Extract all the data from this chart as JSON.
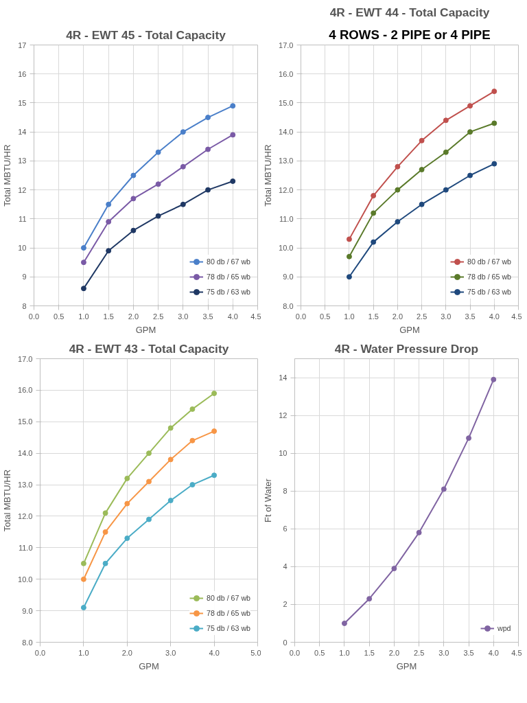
{
  "chart_data": [
    {
      "type": "line",
      "title": "4R - EWT 45 - Total Capacity",
      "xlabel": "GPM",
      "ylabel": "Total MBTU/HR",
      "marker": "circle",
      "grid": true,
      "legend": "bottom right",
      "x": [
        1.0,
        1.5,
        2.0,
        2.5,
        3.0,
        3.5,
        4.0
      ],
      "xlim": [
        0,
        4.5
      ],
      "xticks": [
        {
          "value": 0,
          "label": "0.0"
        },
        0.5,
        {
          "value": 1,
          "label": "1.0"
        },
        1.5,
        {
          "value": 2,
          "label": "2.0"
        },
        2.5,
        {
          "value": 3,
          "label": "3.0"
        },
        3.5,
        {
          "value": 4,
          "label": "4.0"
        },
        4.5
      ],
      "ylim": [
        8,
        17
      ],
      "yticks": [
        8,
        9,
        10,
        11,
        12,
        13,
        14,
        15,
        16,
        17
      ],
      "series": [
        {
          "name": "80 db / 67 wb",
          "color": "#4a7fc9",
          "values": [
            10.0,
            11.5,
            12.5,
            13.3,
            14.0,
            14.5,
            14.9
          ]
        },
        {
          "name": "78 db / 65 wb",
          "color": "#7a5aa6",
          "values": [
            9.5,
            10.9,
            11.7,
            12.2,
            12.8,
            13.4,
            13.9
          ]
        },
        {
          "name": "75 db / 63 wb",
          "color": "#1f3864",
          "values": [
            8.6,
            9.9,
            10.6,
            11.1,
            11.5,
            12.0,
            12.3
          ]
        }
      ]
    },
    {
      "type": "line",
      "title": "4R - EWT 44 - Total Capacity",
      "xlabel": "GPM",
      "ylabel": "Total MBTU/HR",
      "marker": "circle",
      "grid": true,
      "legend": "bottom right",
      "annotations": [
        "4 ROWS - 2 PIPE or 4 PIPE"
      ],
      "x": [
        1.0,
        1.5,
        2.0,
        2.5,
        3.0,
        3.5,
        4.0
      ],
      "xlim": [
        0,
        4.5
      ],
      "xticks": [
        {
          "value": 0,
          "label": "0.0"
        },
        0.5,
        {
          "value": 1,
          "label": "1.0"
        },
        1.5,
        {
          "value": 2,
          "label": "2.0"
        },
        2.5,
        {
          "value": 3,
          "label": "3.0"
        },
        3.5,
        {
          "value": 4,
          "label": "4.0"
        },
        4.5
      ],
      "ylim": [
        8,
        17
      ],
      "yticks": [
        {
          "value": 8,
          "label": "8.0"
        },
        {
          "value": 9,
          "label": "9.0"
        },
        {
          "value": 10,
          "label": "10.0"
        },
        {
          "value": 11,
          "label": "11.0"
        },
        {
          "value": 12,
          "label": "12.0"
        },
        {
          "value": 13,
          "label": "13.0"
        },
        {
          "value": 14,
          "label": "14.0"
        },
        {
          "value": 15,
          "label": "15.0"
        },
        {
          "value": 16,
          "label": "16.0"
        },
        {
          "value": 17,
          "label": "17.0"
        }
      ],
      "series": [
        {
          "name": "80 db / 67 wb",
          "color": "#c0504d",
          "values": [
            10.3,
            11.8,
            12.8,
            13.7,
            14.4,
            14.9,
            15.4
          ]
        },
        {
          "name": "78 db / 65 wb",
          "color": "#5a7a2a",
          "values": [
            9.7,
            11.2,
            12.0,
            12.7,
            13.3,
            14.0,
            14.3
          ]
        },
        {
          "name": "75 db / 63 wb",
          "color": "#1f497d",
          "values": [
            9.0,
            10.2,
            10.9,
            11.5,
            12.0,
            12.5,
            12.9
          ]
        }
      ]
    },
    {
      "type": "line",
      "title": "4R - EWT 43 - Total Capacity",
      "xlabel": "GPM",
      "ylabel": "Total MBTU/HR",
      "marker": "circle",
      "grid": true,
      "legend": "bottom right",
      "x": [
        1.0,
        1.5,
        2.0,
        2.5,
        3.0,
        3.5,
        4.0
      ],
      "xlim": [
        0,
        5
      ],
      "xticks": [
        {
          "value": 0,
          "label": "0.0"
        },
        {
          "value": 1,
          "label": "1.0"
        },
        {
          "value": 2,
          "label": "2.0"
        },
        {
          "value": 3,
          "label": "3.0"
        },
        {
          "value": 4,
          "label": "4.0"
        },
        {
          "value": 5,
          "label": "5.0"
        }
      ],
      "ylim": [
        8,
        17
      ],
      "yticks": [
        {
          "value": 8,
          "label": "8.0"
        },
        {
          "value": 9,
          "label": "9.0"
        },
        {
          "value": 10,
          "label": "10.0"
        },
        {
          "value": 11,
          "label": "11.0"
        },
        {
          "value": 12,
          "label": "12.0"
        },
        {
          "value": 13,
          "label": "13.0"
        },
        {
          "value": 14,
          "label": "14.0"
        },
        {
          "value": 15,
          "label": "15.0"
        },
        {
          "value": 16,
          "label": "16.0"
        },
        {
          "value": 17,
          "label": "17.0"
        }
      ],
      "series": [
        {
          "name": "80 db / 67 wb",
          "color": "#9bbb59",
          "values": [
            10.5,
            12.1,
            13.2,
            14.0,
            14.8,
            15.4,
            15.9
          ]
        },
        {
          "name": "78 db / 65 wb",
          "color": "#f79646",
          "values": [
            10.0,
            11.5,
            12.4,
            13.1,
            13.8,
            14.4,
            14.7
          ]
        },
        {
          "name": "75 db / 63 wb",
          "color": "#4bacc6",
          "values": [
            9.1,
            10.5,
            11.3,
            11.9,
            12.5,
            13.0,
            13.3
          ]
        }
      ]
    },
    {
      "type": "line",
      "title": "4R - Water Pressure Drop",
      "xlabel": "GPM",
      "ylabel": "Ft of Water",
      "marker": "circle",
      "grid": true,
      "legend": "bottom right",
      "x": [
        1.0,
        1.5,
        2.0,
        2.5,
        3.0,
        3.5,
        4.0
      ],
      "xlim": [
        0,
        4.5
      ],
      "xticks": [
        {
          "value": 0,
          "label": "0.0"
        },
        0.5,
        {
          "value": 1,
          "label": "1.0"
        },
        1.5,
        {
          "value": 2,
          "label": "2.0"
        },
        2.5,
        {
          "value": 3,
          "label": "3.0"
        },
        3.5,
        {
          "value": 4,
          "label": "4.0"
        },
        4.5
      ],
      "ylim": [
        0,
        15
      ],
      "yticks": [
        0,
        2,
        4,
        6,
        8,
        10,
        12,
        14
      ],
      "series": [
        {
          "name": "wpd",
          "color": "#8064a2",
          "values": [
            1.0,
            2.3,
            3.9,
            5.8,
            8.1,
            10.8,
            13.9
          ]
        }
      ]
    }
  ]
}
